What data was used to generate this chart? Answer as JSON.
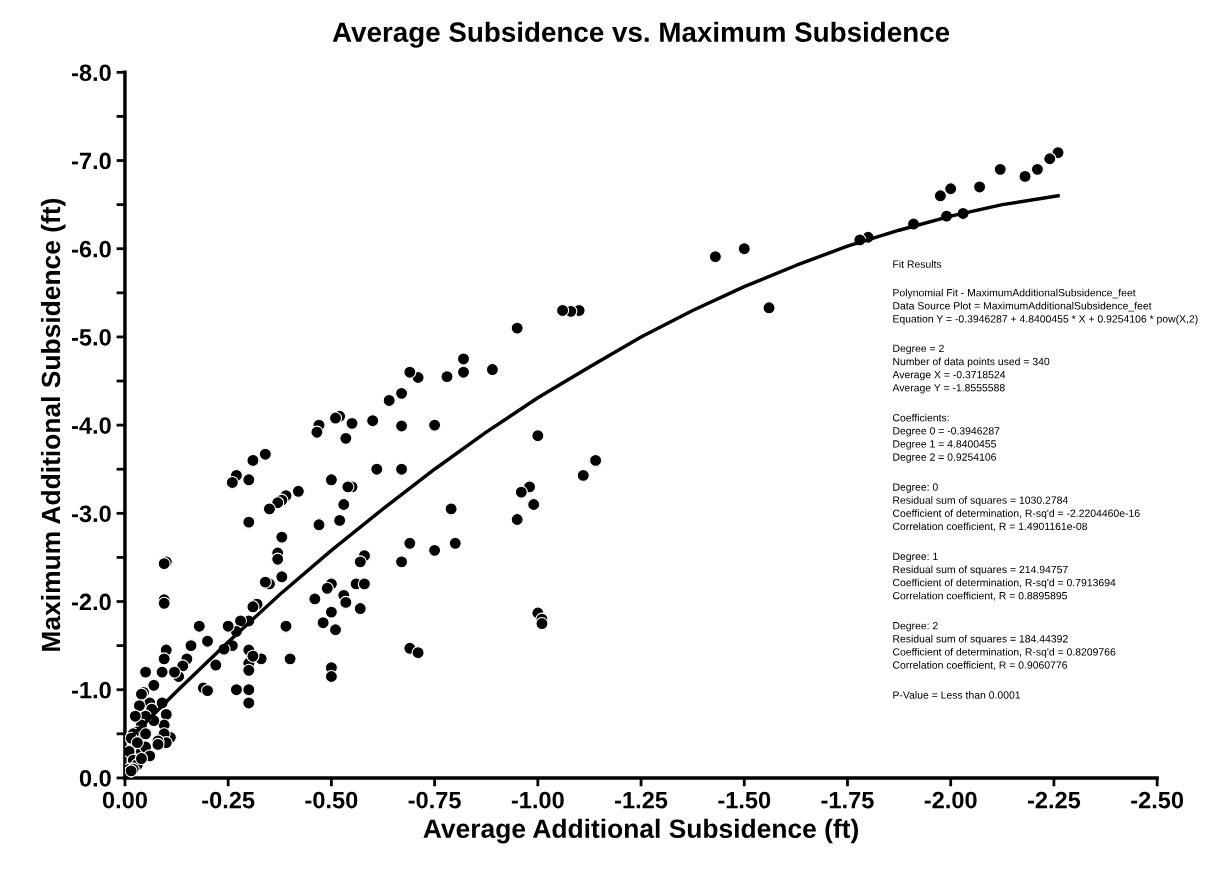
{
  "chart_data": {
    "type": "scatter",
    "title": "Average Subsidence vs. Maximum Subsidence",
    "xlabel": "Average Additional Subsidence (ft)",
    "ylabel": "Maximum Additional Subsidence (ft)",
    "xlim": [
      0,
      -2.5
    ],
    "ylim": [
      0,
      -8
    ],
    "xticks": [
      {
        "value": 0,
        "label": "0.00"
      },
      {
        "value": -0.25,
        "label": "-0.25"
      },
      {
        "value": -0.5,
        "label": "-0.50"
      },
      {
        "value": -0.75,
        "label": "-0.75"
      },
      {
        "value": -1.0,
        "label": "-1.00"
      },
      {
        "value": -1.25,
        "label": "-1.25"
      },
      {
        "value": -1.5,
        "label": "-1.50"
      },
      {
        "value": -1.75,
        "label": "-1.75"
      },
      {
        "value": -2.0,
        "label": "-2.00"
      },
      {
        "value": -2.25,
        "label": "-2.25"
      },
      {
        "value": -2.5,
        "label": "-2.50"
      }
    ],
    "yticks": [
      {
        "value": 0,
        "label": "0.0"
      },
      {
        "value": -0.5,
        "label": null
      },
      {
        "value": -1,
        "label": "-1.0"
      },
      {
        "value": -1.5,
        "label": null
      },
      {
        "value": -2,
        "label": "-2.0"
      },
      {
        "value": -2.5,
        "label": null
      },
      {
        "value": -3,
        "label": "-3.0"
      },
      {
        "value": -3.5,
        "label": null
      },
      {
        "value": -4,
        "label": "-4.0"
      },
      {
        "value": -4.5,
        "label": null
      },
      {
        "value": -5,
        "label": "-5.0"
      },
      {
        "value": -5.5,
        "label": null
      },
      {
        "value": -6,
        "label": "-6.0"
      },
      {
        "value": -6.5,
        "label": null
      },
      {
        "value": -7,
        "label": "-7.0"
      },
      {
        "value": -7.5,
        "label": null
      },
      {
        "value": -8,
        "label": "-8.0"
      }
    ],
    "grid": false,
    "legend": false,
    "series": [
      {
        "marker": "circle",
        "color": "#000000",
        "x": [
          -2.26,
          -2.24,
          -2.21,
          -2.18,
          -2.12,
          -2.07,
          -2.03,
          -2.0,
          -1.99,
          -1.975,
          -1.91,
          -1.8,
          -1.78,
          -1.56,
          -1.5,
          -1.43,
          -1.1,
          -1.08,
          -1.06,
          -0.95,
          -0.89,
          -0.82,
          -0.82,
          -0.78,
          -0.75,
          -0.71,
          -0.69,
          -0.67,
          -0.64,
          -0.67,
          -0.6,
          -0.55,
          -0.52,
          -0.51,
          -0.535,
          -0.47,
          -0.465,
          -1.14,
          -1.11,
          -1.0,
          -0.98,
          -0.96,
          -0.99,
          -0.95,
          -0.79,
          -0.8,
          -0.69,
          -0.75,
          -0.67,
          -0.67,
          -0.61,
          -0.58,
          -0.57,
          -0.56,
          -0.58,
          -0.57,
          -0.55,
          -0.54,
          -0.53,
          -0.52,
          -0.5,
          -0.47,
          -0.5,
          -0.49,
          -0.53,
          -0.535,
          -0.5,
          -0.48,
          -0.51,
          -0.46,
          -0.5,
          -0.5,
          -0.69,
          -0.71,
          -1.0,
          -1.01,
          -1.01,
          -0.42,
          -0.39,
          -0.38,
          -0.37,
          -0.35,
          -0.34,
          -0.31,
          -0.3,
          -0.27,
          -0.26,
          -0.3,
          -0.38,
          -0.37,
          -0.37,
          -0.38,
          -0.35,
          -0.34,
          -0.39,
          -0.32,
          -0.31,
          -0.3,
          -0.28,
          -0.27,
          -0.26,
          -0.25,
          -0.3,
          -0.3,
          -0.3,
          -0.33,
          -0.31,
          -0.27,
          -0.3,
          -0.3,
          -0.4,
          -0.24,
          -0.22,
          -0.2,
          -0.18,
          -0.19,
          -0.2,
          -0.16,
          -0.15,
          -0.14,
          -0.13,
          -0.12,
          -0.11,
          -0.1,
          -0.095,
          -0.095,
          -0.095,
          -0.1,
          -0.095,
          -0.09,
          -0.09,
          -0.1,
          -0.095,
          -0.095,
          -0.1,
          -0.08,
          -0.07,
          -0.06,
          -0.05,
          -0.045,
          -0.04,
          -0.065,
          -0.07,
          -0.05,
          -0.04,
          -0.03,
          -0.035,
          -0.025,
          -0.02,
          -0.015,
          -0.01,
          -0.02,
          -0.03,
          -0.01,
          -0.005,
          -0.04,
          -0.05,
          -0.06,
          -0.08,
          -0.03,
          -0.02,
          -0.015,
          -0.04,
          -0.05
        ],
        "values": [
          -7.09,
          -7.02,
          -6.9,
          -6.82,
          -6.9,
          -6.7,
          -6.4,
          -6.68,
          -6.37,
          -6.6,
          -6.28,
          -6.13,
          -6.1,
          -5.33,
          -6.0,
          -5.91,
          -5.3,
          -5.29,
          -5.3,
          -5.1,
          -4.63,
          -4.75,
          -4.6,
          -4.55,
          -4.0,
          -4.54,
          -4.6,
          -4.36,
          -4.28,
          -3.99,
          -4.05,
          -4.02,
          -4.1,
          -4.08,
          -3.85,
          -4.0,
          -3.92,
          -3.6,
          -3.43,
          -3.88,
          -3.3,
          -3.24,
          -3.1,
          -2.93,
          -3.05,
          -2.66,
          -2.66,
          -2.58,
          -2.45,
          -3.5,
          -3.5,
          -2.52,
          -2.45,
          -2.2,
          -2.2,
          -1.92,
          -3.3,
          -3.3,
          -3.1,
          -2.92,
          -3.38,
          -2.87,
          -2.2,
          -2.15,
          -2.07,
          -1.99,
          -1.88,
          -1.76,
          -1.68,
          -2.03,
          -1.25,
          -1.15,
          -1.47,
          -1.42,
          -1.87,
          -1.8,
          -1.75,
          -3.25,
          -3.2,
          -3.15,
          -3.12,
          -3.05,
          -3.67,
          -3.6,
          -3.38,
          -3.43,
          -3.35,
          -2.9,
          -2.73,
          -2.55,
          -2.48,
          -2.28,
          -2.2,
          -2.22,
          -1.72,
          -1.97,
          -1.94,
          -1.78,
          -1.78,
          -1.66,
          -1.5,
          -1.72,
          -1.45,
          -1.3,
          -1.22,
          -1.35,
          -1.38,
          -1.0,
          -1.0,
          -0.85,
          -1.35,
          -1.46,
          -1.28,
          -1.55,
          -1.72,
          -1.02,
          -0.99,
          -1.5,
          -1.35,
          -1.27,
          -1.15,
          -1.2,
          -0.46,
          -2.45,
          -2.43,
          -2.02,
          -1.98,
          -1.45,
          -1.35,
          -1.2,
          -0.85,
          -0.72,
          -0.6,
          -0.5,
          -0.4,
          -0.42,
          -1.05,
          -0.85,
          -1.2,
          -0.97,
          -0.95,
          -0.78,
          -0.65,
          -0.7,
          -0.6,
          -0.52,
          -0.82,
          -0.7,
          -0.5,
          -0.45,
          -0.3,
          -0.2,
          -0.15,
          -0.1,
          -0.05,
          -0.3,
          -0.35,
          -0.25,
          -0.38,
          -0.4,
          -0.1,
          -0.08,
          -0.22,
          -0.5
        ]
      },
      {
        "type": "line",
        "color": "#000000",
        "x": [
          -0.02,
          -0.125,
          -0.25,
          -0.375,
          -0.5,
          -0.625,
          -0.75,
          -0.875,
          -1.0,
          -1.125,
          -1.25,
          -1.375,
          -1.5,
          -1.625,
          -1.75,
          -1.875,
          -2.0,
          -2.125,
          -2.26
        ],
        "values": [
          -0.49,
          -0.98,
          -1.54,
          -2.08,
          -2.58,
          -3.05,
          -3.5,
          -3.92,
          -4.31,
          -4.66,
          -5.0,
          -5.3,
          -5.57,
          -5.81,
          -6.03,
          -6.21,
          -6.37,
          -6.5,
          -6.6
        ]
      }
    ],
    "annotations": [
      "Fit Results",
      "Polynomial Fit - MaximumAdditionalSubsidence_feet\nData Source Plot = MaximumAdditionalSubsidence_feet\nEquation Y = -0.3946287 + 4.8400455 * X + 0.9254106 * pow(X,2)",
      "Degree = 2\nNumber of data points used = 340\nAverage X = -0.3718524\nAverage Y = -1.8555588",
      "Coefficients:\nDegree 0 = -0.3946287\nDegree 1 = 4.8400455\nDegree 2 = 0.9254106",
      "Degree: 0\nResidual sum of squares = 1030.2784\nCoefficient of determination, R-sq'd = -2.2204460e-16\nCorrelation coefficient, R = 1.4901161e-08",
      "Degree: 1\nResidual sum of squares = 214.94757\nCoefficient of determination, R-sq'd = 0.7913694\nCorrelation coefficient, R = 0.8895895",
      "Degree: 2\nResidual sum of squares = 184.44392\nCoefficient of determination, R-sq'd = 0.8209766\nCorrelation coefficient, R = 0.9060776",
      "P-Value = Less than 0.0001"
    ]
  }
}
